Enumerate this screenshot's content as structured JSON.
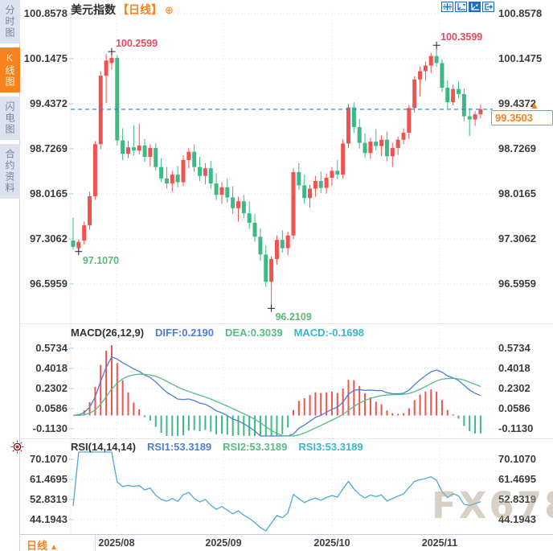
{
  "header": {
    "title": "美元指数",
    "period_tag": "【日线】",
    "add_icon": "⊕"
  },
  "toolbar": {
    "icons": [
      "crosshair",
      "axis-scale",
      "axis-scale-active",
      "exit"
    ]
  },
  "sidebar": {
    "tabs": [
      {
        "label": "分时图",
        "active": false
      },
      {
        "label": "K线图",
        "active": true
      },
      {
        "label": "闪电图",
        "active": false
      },
      {
        "label": "合约资料",
        "active": false
      }
    ]
  },
  "main_chart": {
    "y_ticks": [
      "100.8578",
      "100.1475",
      "99.4372",
      "98.7269",
      "98.0165",
      "97.3062",
      "96.5959"
    ],
    "current_price": "99.3503",
    "alert_arrow": "▲",
    "annotations": [
      {
        "text": "100.2599",
        "bar": 7,
        "kind": "high"
      },
      {
        "text": "97.1070",
        "bar": 1,
        "kind": "low"
      },
      {
        "text": "96.2109",
        "bar": 36,
        "kind": "low"
      },
      {
        "text": "100.3599",
        "bar": 66,
        "kind": "high"
      }
    ]
  },
  "macd_panel": {
    "title": "MACD(26,12,9)",
    "diff": "DIFF:0.2190",
    "dea": "DEA:0.3039",
    "macd": "MACD:-0.1698",
    "y_ticks": [
      "0.5734",
      "0.4018",
      "0.2302",
      "0.0586",
      "-0.1130"
    ]
  },
  "rsi_panel": {
    "title": "RSI(14,14,14)",
    "rsi1": "RSI1:53.3189",
    "rsi2": "RSI2:53.3189",
    "rsi3": "RSI3:53.3189",
    "y_ticks": [
      "70.1070",
      "61.4695",
      "52.8319",
      "44.1943"
    ]
  },
  "bottom_bar": {
    "period": "日线",
    "arrow": "▲",
    "x_ticks": [
      "2025/08",
      "2025/09",
      "2025/10",
      "2025/11"
    ]
  },
  "watermark": "FX678",
  "colors": {
    "up": "#ef5350",
    "down": "#3db887",
    "accent": "#f8821d",
    "price_line": "#2b8de0",
    "diff_blue": "#4a7fd4",
    "dea_green": "#55bd87",
    "macd_cyan": "#38b8c8",
    "rsi_line": "#4aabd6",
    "annotation_high": "#e8495f",
    "annotation_low": "#5cb87a"
  },
  "chart_data": {
    "type": "candlestick",
    "title": "美元指数 日线",
    "x_labels": [
      "2025/08",
      "2025/09",
      "2025/10",
      "2025/11"
    ],
    "y_axis": [
      100.8578,
      100.1475,
      99.4372,
      98.7269,
      98.0165,
      97.3062,
      96.5959
    ],
    "key_points": {
      "period_high": 100.3599,
      "prev_high": 100.2599,
      "period_low": 96.2109,
      "prev_low": 97.107,
      "last_close": 99.3503
    },
    "ohlc": [
      [
        97.28,
        97.64,
        97.14,
        97.18
      ],
      [
        97.16,
        97.3,
        97.107,
        97.26
      ],
      [
        97.28,
        97.58,
        97.22,
        97.52
      ],
      [
        97.52,
        98.05,
        97.45,
        97.98
      ],
      [
        97.98,
        98.85,
        97.92,
        98.8
      ],
      [
        98.8,
        99.95,
        98.72,
        99.88
      ],
      [
        99.88,
        100.22,
        99.45,
        100.12
      ],
      [
        100.08,
        100.2599,
        99.98,
        100.16
      ],
      [
        100.16,
        100.2,
        98.78,
        98.86
      ],
      [
        98.86,
        99.05,
        98.55,
        98.65
      ],
      [
        98.65,
        98.85,
        98.58,
        98.75
      ],
      [
        98.75,
        99.1,
        98.62,
        98.7
      ],
      [
        98.7,
        99.12,
        98.64,
        98.78
      ],
      [
        98.78,
        98.88,
        98.52,
        98.6
      ],
      [
        98.6,
        98.8,
        98.45,
        98.74
      ],
      [
        98.74,
        98.82,
        98.38,
        98.44
      ],
      [
        98.44,
        98.58,
        98.2,
        98.26
      ],
      [
        98.26,
        98.44,
        98.1,
        98.18
      ],
      [
        98.18,
        98.38,
        98.05,
        98.32
      ],
      [
        98.32,
        98.46,
        98.12,
        98.2
      ],
      [
        98.2,
        98.62,
        98.14,
        98.55
      ],
      [
        98.55,
        98.74,
        98.42,
        98.68
      ],
      [
        98.68,
        98.8,
        98.36,
        98.44
      ],
      [
        98.44,
        98.6,
        98.22,
        98.3
      ],
      [
        98.3,
        98.5,
        98.17,
        98.42
      ],
      [
        98.42,
        98.54,
        98.1,
        98.18
      ],
      [
        98.18,
        98.34,
        97.92,
        98.0
      ],
      [
        98.0,
        98.2,
        97.86,
        98.12
      ],
      [
        98.12,
        98.26,
        97.88,
        97.96
      ],
      [
        97.96,
        98.14,
        97.7,
        97.79
      ],
      [
        97.79,
        97.97,
        97.58,
        97.9
      ],
      [
        97.9,
        98.0,
        97.63,
        97.71
      ],
      [
        97.71,
        97.9,
        97.46,
        97.56
      ],
      [
        97.56,
        97.7,
        97.26,
        97.34
      ],
      [
        97.34,
        97.47,
        96.96,
        97.06
      ],
      [
        97.06,
        97.2,
        96.55,
        96.63
      ],
      [
        96.63,
        97.03,
        96.2109,
        96.99
      ],
      [
        96.99,
        97.36,
        96.9,
        97.29
      ],
      [
        97.29,
        97.44,
        97.09,
        97.16
      ],
      [
        97.16,
        97.42,
        97.05,
        97.36
      ],
      [
        97.36,
        98.42,
        97.3,
        98.36
      ],
      [
        98.36,
        98.5,
        98.08,
        98.15
      ],
      [
        98.15,
        98.32,
        97.86,
        97.95
      ],
      [
        97.95,
        98.16,
        97.8,
        98.1
      ],
      [
        98.1,
        98.3,
        97.97,
        98.22
      ],
      [
        98.22,
        98.37,
        98.03,
        98.11
      ],
      [
        98.11,
        98.34,
        98.02,
        98.27
      ],
      [
        98.27,
        98.44,
        98.14,
        98.38
      ],
      [
        98.38,
        98.55,
        98.25,
        98.32
      ],
      [
        98.32,
        98.88,
        98.26,
        98.81
      ],
      [
        98.81,
        99.44,
        98.74,
        99.38
      ],
      [
        99.38,
        99.46,
        98.98,
        99.07
      ],
      [
        99.07,
        99.2,
        98.73,
        98.82
      ],
      [
        98.82,
        98.97,
        98.59,
        98.66
      ],
      [
        98.66,
        98.9,
        98.57,
        98.84
      ],
      [
        98.84,
        99.04,
        98.7,
        98.77
      ],
      [
        98.77,
        98.94,
        98.61,
        98.87
      ],
      [
        98.87,
        99.0,
        98.53,
        98.61
      ],
      [
        98.61,
        98.82,
        98.44,
        98.74
      ],
      [
        98.74,
        98.92,
        98.63,
        98.87
      ],
      [
        98.87,
        99.05,
        98.8,
        98.98
      ],
      [
        98.98,
        99.42,
        98.88,
        99.37
      ],
      [
        99.37,
        99.87,
        99.3,
        99.82
      ],
      [
        99.82,
        100.02,
        99.55,
        99.95
      ],
      [
        99.95,
        100.1,
        99.8,
        100.04
      ],
      [
        100.04,
        100.24,
        99.92,
        100.19
      ],
      [
        100.19,
        100.3599,
        100.02,
        100.08
      ],
      [
        100.08,
        100.14,
        99.62,
        99.69
      ],
      [
        99.69,
        99.81,
        99.36,
        99.46
      ],
      [
        99.46,
        99.74,
        99.41,
        99.67
      ],
      [
        99.67,
        99.79,
        99.52,
        99.59
      ],
      [
        99.59,
        99.68,
        99.16,
        99.24
      ],
      [
        99.24,
        99.37,
        98.93,
        99.19
      ],
      [
        99.19,
        99.32,
        99.09,
        99.27
      ],
      [
        99.27,
        99.43,
        99.21,
        99.3503
      ]
    ],
    "indicators": {
      "macd": {
        "params": [
          26,
          12,
          9
        ],
        "diff": 0.219,
        "dea": 0.3039,
        "macd": -0.1698,
        "axis": [
          0.5734,
          0.4018,
          0.2302,
          0.0586,
          -0.113
        ]
      },
      "rsi": {
        "params": [
          14,
          14,
          14
        ],
        "rsi1": 53.3189,
        "rsi2": 53.3189,
        "rsi3": 53.3189,
        "axis": [
          70.107,
          61.4695,
          52.8319,
          44.1943
        ]
      }
    }
  }
}
